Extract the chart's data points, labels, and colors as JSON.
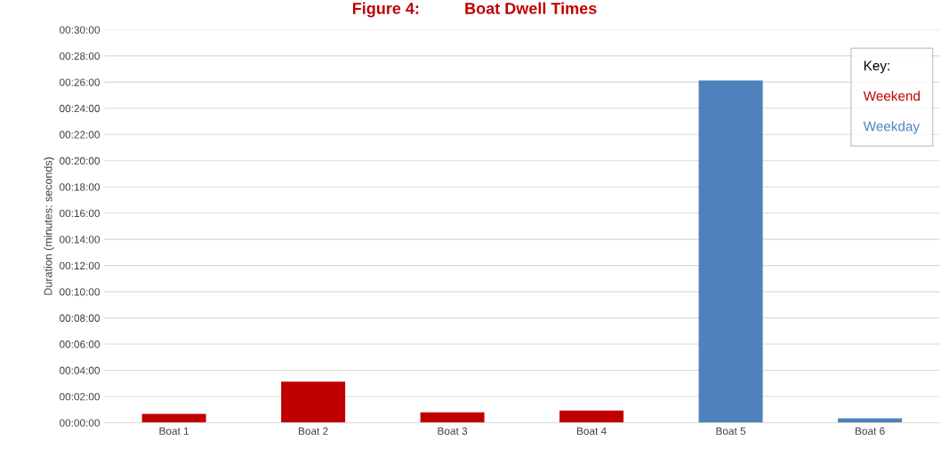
{
  "chart_data": {
    "type": "bar",
    "title": "Figure 4:          Boat Dwell Times",
    "ylabel": "Duration (minutes: seconds)",
    "legend_title": "Key:",
    "categories": [
      "Boat 1",
      "Boat 2",
      "Boat 3",
      "Boat 4",
      "Boat 5",
      "Boat 6"
    ],
    "series": [
      {
        "name": "Weekend",
        "color": "#c00000",
        "values": [
          0.67,
          3.13,
          0.8,
          0.93,
          null,
          null
        ]
      },
      {
        "name": "Weekday",
        "color": "#4f81bd",
        "values": [
          null,
          null,
          null,
          null,
          26.13,
          0.33
        ]
      }
    ],
    "ylim": [
      0,
      30
    ],
    "yticks": [
      {
        "value": 0,
        "label": "00:00:00"
      },
      {
        "value": 2,
        "label": "00:02:00"
      },
      {
        "value": 4,
        "label": "00:04:00"
      },
      {
        "value": 6,
        "label": "00:06:00"
      },
      {
        "value": 8,
        "label": "00:08:00"
      },
      {
        "value": 10,
        "label": "00:10:00"
      },
      {
        "value": 12,
        "label": "00:12:00"
      },
      {
        "value": 14,
        "label": "00:14:00"
      },
      {
        "value": 16,
        "label": "00:16:00"
      },
      {
        "value": 18,
        "label": "00:18:00"
      },
      {
        "value": 20,
        "label": "00:20:00"
      },
      {
        "value": 22,
        "label": "00:22:00"
      },
      {
        "value": 24,
        "label": "00:24:00"
      },
      {
        "value": 26,
        "label": "00:26:00"
      },
      {
        "value": 28,
        "label": "00:28:00"
      },
      {
        "value": 30,
        "label": "00:30:00"
      }
    ],
    "grid": "y",
    "legend": "top right"
  }
}
